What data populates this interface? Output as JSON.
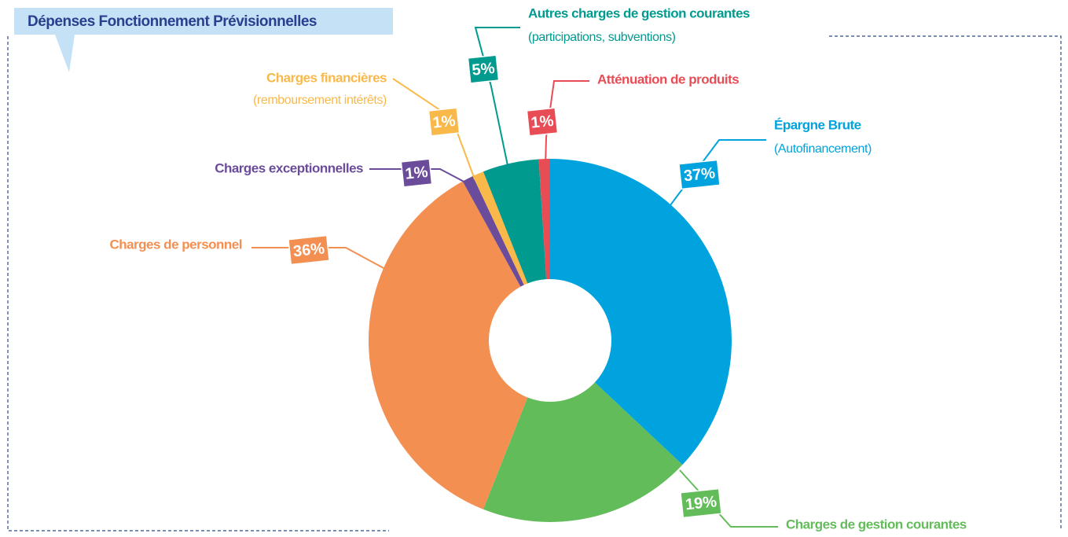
{
  "chart_data": {
    "type": "pie",
    "title": "Dépenses Fonctionnement Prévisionnelles",
    "categories": [
      "Épargne Brute",
      "Charges de gestion courantes",
      "Charges de personnel",
      "Charges exceptionnelles",
      "Charges financières",
      "Autres charges de gestion courantes",
      "Atténuation de produits"
    ],
    "sublabels": [
      "(Autofinancement)",
      null,
      null,
      null,
      "(remboursement intérêts)",
      "(participations, subventions)",
      null
    ],
    "values": [
      37,
      19,
      36,
      1,
      1,
      5,
      1
    ],
    "value_labels": [
      "37%",
      "19%",
      "36%",
      "1%",
      "1%",
      "5%",
      "1%"
    ],
    "colors": [
      "#00a3de",
      "#63bc5a",
      "#f48f52",
      "#6b4c9a",
      "#f9b94a",
      "#009a8e",
      "#e84c55"
    ]
  }
}
